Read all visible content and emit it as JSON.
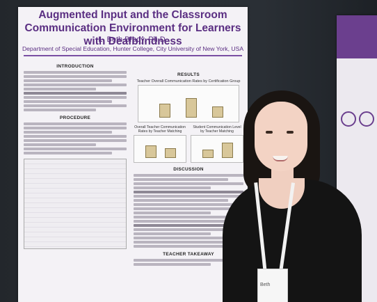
{
  "poster": {
    "title": "Augmented Input and the Classroom Communication Environment for Learners with Deafblindness",
    "author": "L. Beth Brady, Ph.D.",
    "department": "Department of Special Education, Hunter College, City University of New York, USA",
    "sections": {
      "introduction": "INTRODUCTION",
      "procedure": "PROCEDURE",
      "results": "RESULTS",
      "discussion": "DISCUSSION",
      "teacher_takeaway": "TEACHER TAKEAWAY"
    },
    "charts": {
      "main": "Teacher Overall Communication Rates by Certification Group",
      "left": "Overall Teacher Communication Rates by Teacher Matching",
      "right": "Student Communication Level by Teacher Matching"
    }
  },
  "badge": {
    "name": "Beth"
  },
  "colors": {
    "poster_accent": "#5a2e82",
    "poster_bg": "#f4f2f6"
  }
}
